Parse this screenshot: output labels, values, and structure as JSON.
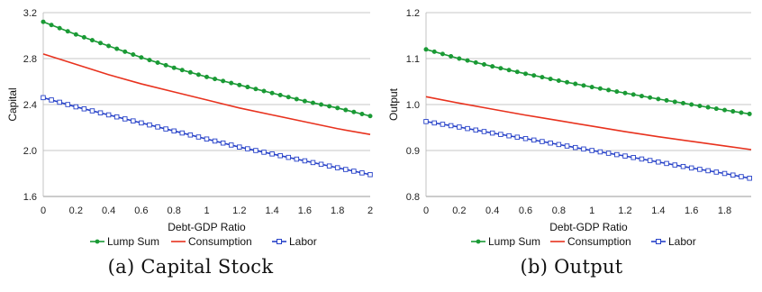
{
  "chart_data": [
    {
      "type": "line",
      "caption": "(a) Capital Stock",
      "xlabel": "Debt-GDP Ratio",
      "ylabel": "Capital",
      "xlim": [
        0,
        2
      ],
      "ylim": [
        1.6,
        3.2
      ],
      "x_ticks": [
        "0",
        "0.2",
        "0.4",
        "0.6",
        "0.8",
        "1",
        "1.2",
        "1.4",
        "1.6",
        "1.8",
        "2"
      ],
      "y_ticks": [
        "1.6",
        "2.0",
        "2.4",
        "2.8",
        "3.2"
      ],
      "grid": true,
      "legend": "bottom",
      "series": [
        {
          "name": "Lump Sum",
          "color": "#1a9a35",
          "marker": "filled-circle",
          "x": [
            0,
            0.2,
            0.4,
            0.6,
            0.8,
            1.0,
            1.2,
            1.4,
            1.6,
            1.8,
            2.0
          ],
          "values": [
            3.12,
            3.01,
            2.91,
            2.81,
            2.72,
            2.64,
            2.57,
            2.5,
            2.43,
            2.37,
            2.3
          ]
        },
        {
          "name": "Consumption",
          "color": "#e8321e",
          "marker": "none",
          "x": [
            0,
            0.2,
            0.4,
            0.6,
            0.8,
            1.0,
            1.2,
            1.4,
            1.6,
            1.8,
            2.0
          ],
          "values": [
            2.84,
            2.75,
            2.66,
            2.58,
            2.51,
            2.44,
            2.37,
            2.31,
            2.25,
            2.19,
            2.14
          ]
        },
        {
          "name": "Labor",
          "color": "#2540c8",
          "marker": "open-square",
          "x": [
            0,
            0.2,
            0.4,
            0.6,
            0.8,
            1.0,
            1.2,
            1.4,
            1.6,
            1.8,
            2.0
          ],
          "values": [
            2.46,
            2.38,
            2.31,
            2.24,
            2.17,
            2.1,
            2.03,
            1.97,
            1.91,
            1.85,
            1.79
          ]
        }
      ]
    },
    {
      "type": "line",
      "caption": "(b) Output",
      "xlabel": "Debt-GDP Ratio",
      "ylabel": "Output",
      "xlim": [
        0,
        1.96
      ],
      "ylim": [
        0.8,
        1.2
      ],
      "x_ticks": [
        "0",
        "0.2",
        "0.4",
        "0.6",
        "0.8",
        "1",
        "1.2",
        "1.4",
        "1.6",
        "1.8"
      ],
      "y_ticks": [
        "0.8",
        "0.9",
        "1.0",
        "1.1",
        "1.2"
      ],
      "grid": true,
      "legend": "bottom",
      "series": [
        {
          "name": "Lump Sum",
          "color": "#1a9a35",
          "marker": "filled-circle",
          "x": [
            0,
            0.2,
            0.4,
            0.6,
            0.8,
            1.0,
            1.2,
            1.4,
            1.6,
            1.8,
            1.96
          ],
          "values": [
            1.12,
            1.1,
            1.083,
            1.067,
            1.052,
            1.038,
            1.025,
            1.012,
            1.0,
            0.988,
            0.979
          ]
        },
        {
          "name": "Consumption",
          "color": "#e8321e",
          "marker": "none",
          "x": [
            0,
            0.2,
            0.4,
            0.6,
            0.8,
            1.0,
            1.2,
            1.4,
            1.6,
            1.8,
            1.96
          ],
          "values": [
            1.017,
            1.003,
            0.99,
            0.977,
            0.965,
            0.953,
            0.941,
            0.93,
            0.92,
            0.91,
            0.902
          ]
        },
        {
          "name": "Labor",
          "color": "#2540c8",
          "marker": "open-square",
          "x": [
            0,
            0.2,
            0.4,
            0.6,
            0.8,
            1.0,
            1.2,
            1.4,
            1.6,
            1.8,
            1.96
          ],
          "values": [
            0.963,
            0.951,
            0.938,
            0.926,
            0.913,
            0.9,
            0.888,
            0.875,
            0.862,
            0.85,
            0.839
          ]
        }
      ]
    }
  ]
}
